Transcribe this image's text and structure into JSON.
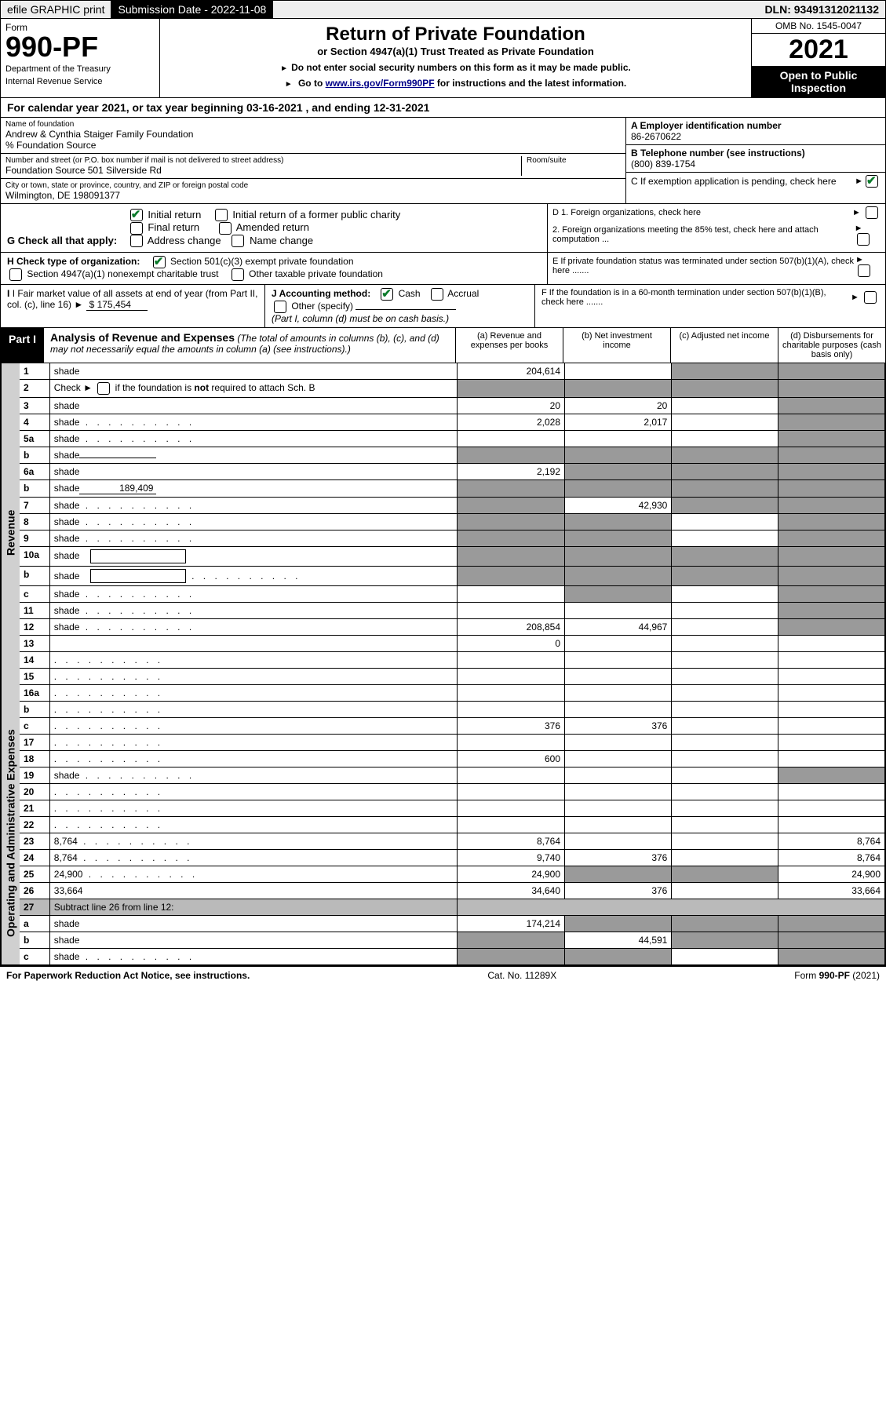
{
  "topbar": {
    "efile": "efile GRAPHIC print",
    "submission_label": "Submission Date - 2022-11-08",
    "dln": "DLN: 93491312021132"
  },
  "header": {
    "form_word": "Form",
    "form_num": "990-PF",
    "dept": "Department of the Treasury",
    "irs": "Internal Revenue Service",
    "title": "Return of Private Foundation",
    "subtitle": "or Section 4947(a)(1) Trust Treated as Private Foundation",
    "instr1": "Do not enter social security numbers on this form as it may be made public.",
    "instr2_pre": "Go to ",
    "instr2_link": "www.irs.gov/Form990PF",
    "instr2_post": " for instructions and the latest information.",
    "omb": "OMB No. 1545-0047",
    "year": "2021",
    "open": "Open to Public Inspection"
  },
  "calendar": "For calendar year 2021, or tax year beginning 03-16-2021           , and ending 12-31-2021",
  "info": {
    "name_label": "Name of foundation",
    "name": "Andrew & Cynthia Staiger Family Foundation",
    "care_of": "% Foundation Source",
    "addr_label": "Number and street (or P.O. box number if mail is not delivered to street address)",
    "addr": "Foundation Source 501 Silverside Rd",
    "room_label": "Room/suite",
    "city_label": "City or town, state or province, country, and ZIP or foreign postal code",
    "city": "Wilmington, DE  198091377",
    "A_label": "A Employer identification number",
    "A_val": "86-2670622",
    "B_label": "B Telephone number (see instructions)",
    "B_val": "(800) 839-1754",
    "C_label": "C If exemption application is pending, check here"
  },
  "G": {
    "label": "G Check all that apply:",
    "opts": [
      "Initial return",
      "Initial return of a former public charity",
      "Final return",
      "Amended return",
      "Address change",
      "Name change"
    ],
    "checked": "Initial return"
  },
  "D": {
    "d1": "D 1. Foreign organizations, check here",
    "d2": "2. Foreign organizations meeting the 85% test, check here and attach computation ..."
  },
  "H": {
    "label": "H Check type of organization:",
    "opt1": "Section 501(c)(3) exempt private foundation",
    "opt2": "Section 4947(a)(1) nonexempt charitable trust",
    "opt3": "Other taxable private foundation"
  },
  "E": "E  If private foundation status was terminated under section 507(b)(1)(A), check here .......",
  "I": {
    "label": "I Fair market value of all assets at end of year (from Part II, col. (c), line 16)",
    "val": "$  175,454"
  },
  "J": {
    "label": "J Accounting method:",
    "cash": "Cash",
    "accrual": "Accrual",
    "other": "Other (specify)",
    "note": "(Part I, column (d) must be on cash basis.)"
  },
  "F": "F  If the foundation is in a 60-month termination under section 507(b)(1)(B), check here .......",
  "part1": {
    "badge": "Part I",
    "title": "Analysis of Revenue and Expenses",
    "paren": " (The total of amounts in columns (b), (c), and (d) may not necessarily equal the amounts in column (a) (see instructions).)",
    "cols": [
      "(a)  Revenue and expenses per books",
      "(b)  Net investment income",
      "(c)  Adjusted net income",
      "(d)  Disbursements for charitable purposes (cash basis only)"
    ]
  },
  "vlabels": {
    "rev": "Revenue",
    "exp": "Operating and Administrative Expenses"
  },
  "rows": [
    {
      "n": "1",
      "d": "shade",
      "a": "204,614",
      "b": "",
      "c": "shade"
    },
    {
      "n": "2",
      "d_html": "Check ► <span class='cb round'></span> if the foundation is <b>not</b> required to attach Sch. B",
      "a": "shade",
      "b": "shade",
      "c": "shade",
      "d": "shade"
    },
    {
      "n": "3",
      "d": "shade",
      "a": "20",
      "b": "20",
      "c": ""
    },
    {
      "n": "4",
      "d": "shade",
      "a": "2,028",
      "b": "2,017",
      "c": "",
      "dots": true
    },
    {
      "n": "5a",
      "d": "shade",
      "a": "",
      "b": "",
      "c": "",
      "dots": true
    },
    {
      "n": "b",
      "d": "shade",
      "a": "shade",
      "b": "shade",
      "c": "shade",
      "inline": ""
    },
    {
      "n": "6a",
      "d": "shade",
      "a": "2,192",
      "b": "shade",
      "c": "shade"
    },
    {
      "n": "b",
      "d": "shade",
      "a": "shade",
      "b": "shade",
      "c": "shade",
      "inline": "189,409"
    },
    {
      "n": "7",
      "d": "shade",
      "a": "shade",
      "b": "42,930",
      "c": "shade",
      "dots": true
    },
    {
      "n": "8",
      "d": "shade",
      "a": "shade",
      "b": "shade",
      "c": "",
      "dots": true
    },
    {
      "n": "9",
      "d": "shade",
      "a": "shade",
      "b": "shade",
      "c": "",
      "dots": true
    },
    {
      "n": "10a",
      "d": "shade",
      "a": "shade",
      "b": "shade",
      "c": "shade",
      "box": true
    },
    {
      "n": "b",
      "d": "shade",
      "a": "shade",
      "b": "shade",
      "c": "shade",
      "box": true,
      "dots": true
    },
    {
      "n": "c",
      "d": "shade",
      "a": "",
      "b": "shade",
      "c": "",
      "dots": true
    },
    {
      "n": "11",
      "d": "shade",
      "a": "",
      "b": "",
      "c": "",
      "dots": true
    },
    {
      "n": "12",
      "d": "shade",
      "a": "208,854",
      "b": "44,967",
      "c": "",
      "dots": true
    },
    {
      "n": "13",
      "d": "",
      "a": "0",
      "b": "",
      "c": ""
    },
    {
      "n": "14",
      "d": "",
      "a": "",
      "b": "",
      "c": "",
      "dots": true
    },
    {
      "n": "15",
      "d": "",
      "a": "",
      "b": "",
      "c": "",
      "dots": true
    },
    {
      "n": "16a",
      "d": "",
      "a": "",
      "b": "",
      "c": "",
      "dots": true
    },
    {
      "n": "b",
      "d": "",
      "a": "",
      "b": "",
      "c": "",
      "dots": true
    },
    {
      "n": "c",
      "d": "",
      "a": "376",
      "b": "376",
      "c": "",
      "dots": true
    },
    {
      "n": "17",
      "d": "",
      "a": "",
      "b": "",
      "c": "",
      "dots": true
    },
    {
      "n": "18",
      "d": "",
      "a": "600",
      "b": "",
      "c": "",
      "dots": true
    },
    {
      "n": "19",
      "d": "shade",
      "a": "",
      "b": "",
      "c": "",
      "dots": true
    },
    {
      "n": "20",
      "d": "",
      "a": "",
      "b": "",
      "c": "",
      "dots": true
    },
    {
      "n": "21",
      "d": "",
      "a": "",
      "b": "",
      "c": "",
      "dots": true
    },
    {
      "n": "22",
      "d": "",
      "a": "",
      "b": "",
      "c": "",
      "dots": true
    },
    {
      "n": "23",
      "d": "8,764",
      "a": "8,764",
      "b": "",
      "c": "",
      "dots": true
    },
    {
      "n": "24",
      "d": "8,764",
      "a": "9,740",
      "b": "376",
      "c": "",
      "dots": true
    },
    {
      "n": "25",
      "d": "24,900",
      "a": "24,900",
      "b": "shade",
      "c": "shade",
      "dots": true
    },
    {
      "n": "26",
      "d": "33,664",
      "a": "34,640",
      "b": "376",
      "c": ""
    },
    {
      "n": "27",
      "d": "Subtract line 26 from line 12:",
      "grey": true
    },
    {
      "n": "a",
      "d": "shade",
      "a": "174,214",
      "b": "shade",
      "c": "shade"
    },
    {
      "n": "b",
      "d": "shade",
      "a": "shade",
      "b": "44,591",
      "c": "shade"
    },
    {
      "n": "c",
      "d": "shade",
      "a": "shade",
      "b": "shade",
      "c": "",
      "dots": true
    }
  ],
  "footer": {
    "left": "For Paperwork Reduction Act Notice, see instructions.",
    "mid": "Cat. No. 11289X",
    "right": "Form 990-PF (2021)"
  }
}
